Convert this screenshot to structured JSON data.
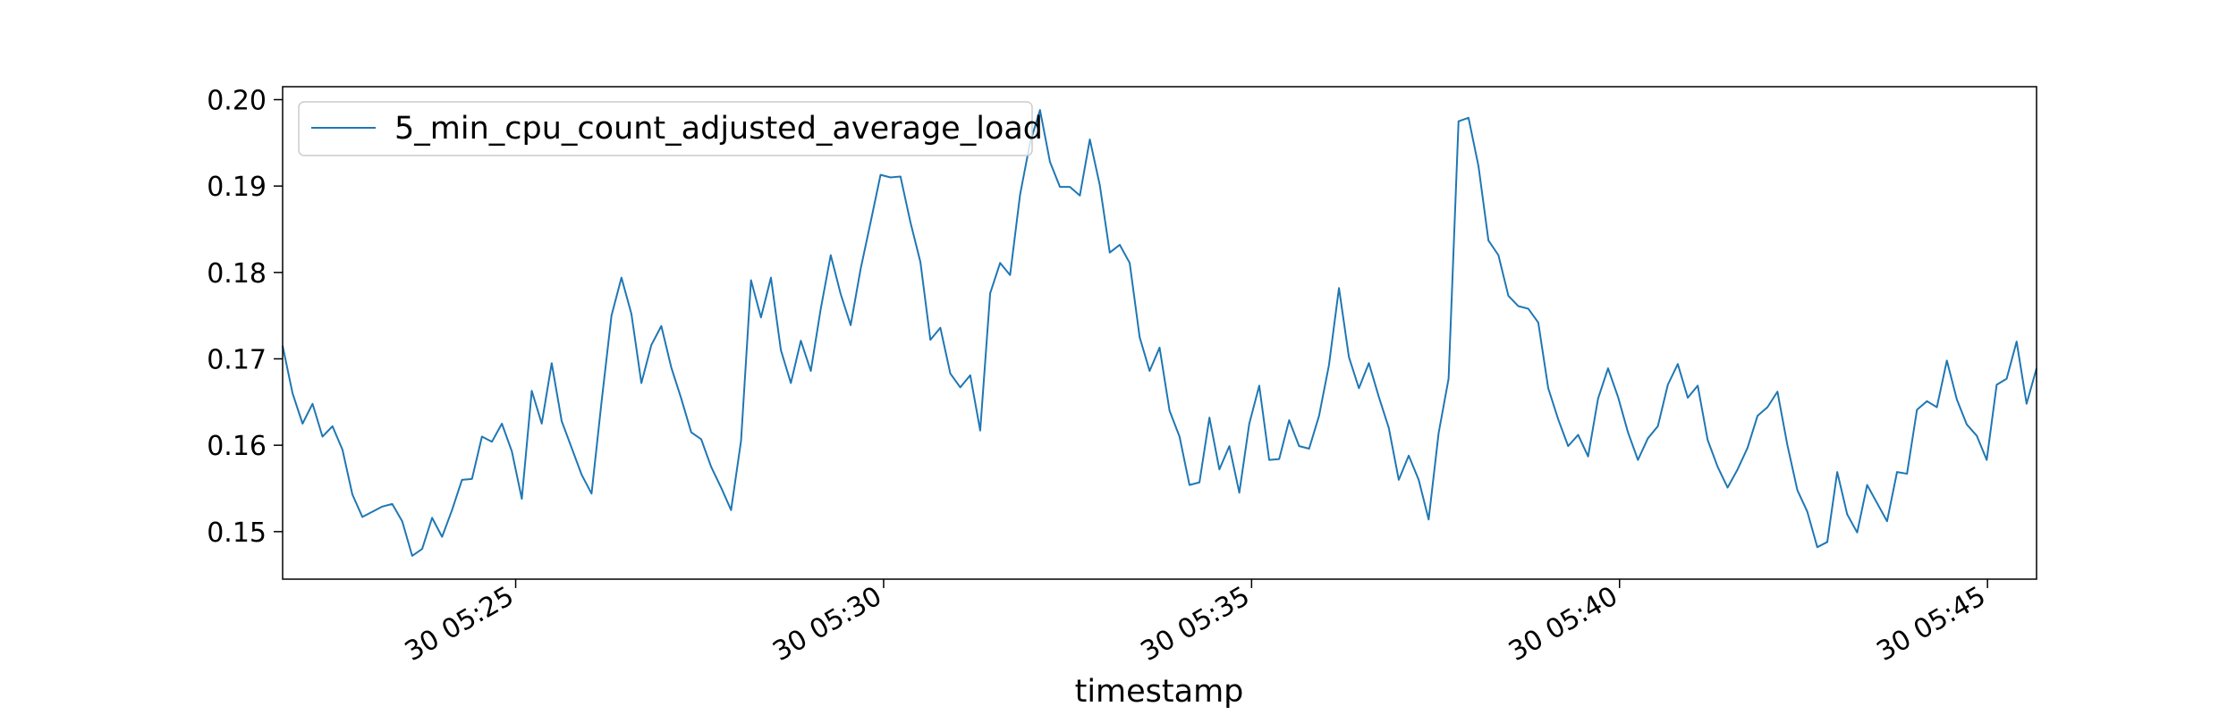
{
  "chart_data": {
    "type": "line",
    "xlabel": "timestamp",
    "ylabel": "",
    "x_start": "30 05:21:50",
    "x_end": "30 05:45:40",
    "x_ticks": [
      {
        "time": "30 05:25:00",
        "label": "30 05:25"
      },
      {
        "time": "30 05:30:00",
        "label": "30 05:30"
      },
      {
        "time": "30 05:35:00",
        "label": "30 05:35"
      },
      {
        "time": "30 05:40:00",
        "label": "30 05:40"
      },
      {
        "time": "30 05:45:00",
        "label": "30 05:45"
      }
    ],
    "ylim": [
      0.1445,
      0.2015
    ],
    "y_ticks": [
      {
        "value": 0.15,
        "label": "0.15"
      },
      {
        "value": 0.16,
        "label": "0.16"
      },
      {
        "value": 0.17,
        "label": "0.17"
      },
      {
        "value": 0.18,
        "label": "0.18"
      },
      {
        "value": 0.19,
        "label": "0.19"
      },
      {
        "value": 0.2,
        "label": "0.20"
      }
    ],
    "grid": false,
    "legend_position": "upper-left",
    "series": [
      {
        "name": "5_min_cpu_count_adjusted_average_load",
        "color": "#1f77b4",
        "values": [
          0.1715,
          0.166,
          0.1625,
          0.1648,
          0.161,
          0.1622,
          0.1595,
          0.1543,
          0.1517,
          0.1523,
          0.1529,
          0.1532,
          0.1512,
          0.1472,
          0.148,
          0.1516,
          0.1494,
          0.1525,
          0.156,
          0.1561,
          0.161,
          0.1604,
          0.1625,
          0.1593,
          0.1538,
          0.1663,
          0.1625,
          0.1695,
          0.1628,
          0.1597,
          0.1566,
          0.1544,
          0.165,
          0.175,
          0.1794,
          0.1752,
          0.1672,
          0.1716,
          0.1738,
          0.169,
          0.1654,
          0.1615,
          0.1607,
          0.1575,
          0.1551,
          0.1525,
          0.1605,
          0.1791,
          0.1748,
          0.1794,
          0.171,
          0.1672,
          0.1721,
          0.1686,
          0.1758,
          0.182,
          0.1775,
          0.1739,
          0.1804,
          0.1858,
          0.1913,
          0.191,
          0.1911,
          0.1858,
          0.1812,
          0.1722,
          0.1736,
          0.1683,
          0.1667,
          0.1681,
          0.1617,
          0.1776,
          0.1811,
          0.1797,
          0.189,
          0.195,
          0.1988,
          0.1928,
          0.1899,
          0.1899,
          0.1889,
          0.1954,
          0.1901,
          0.1823,
          0.1832,
          0.1811,
          0.1725,
          0.1686,
          0.1713,
          0.164,
          0.161,
          0.1554,
          0.1557,
          0.1632,
          0.1572,
          0.1599,
          0.1545,
          0.1625,
          0.1669,
          0.1583,
          0.1584,
          0.1629,
          0.1599,
          0.1596,
          0.1634,
          0.1693,
          0.1782,
          0.1702,
          0.1666,
          0.1695,
          0.1656,
          0.162,
          0.156,
          0.1588,
          0.156,
          0.1514,
          0.1614,
          0.1677,
          0.1975,
          0.1979,
          0.1923,
          0.1837,
          0.182,
          0.1773,
          0.1761,
          0.1758,
          0.1742,
          0.1666,
          0.163,
          0.1599,
          0.1612,
          0.1587,
          0.1654,
          0.1689,
          0.1656,
          0.1615,
          0.1583,
          0.1608,
          0.1622,
          0.167,
          0.1694,
          0.1655,
          0.1669,
          0.1606,
          0.1575,
          0.1551,
          0.1572,
          0.1597,
          0.1634,
          0.1644,
          0.1662,
          0.16,
          0.1548,
          0.1523,
          0.1482,
          0.1488,
          0.1569,
          0.152,
          0.1499,
          0.1554,
          0.1533,
          0.1512,
          0.1569,
          0.1567,
          0.1641,
          0.1651,
          0.1644,
          0.1698,
          0.1653,
          0.1624,
          0.1611,
          0.1583,
          0.167,
          0.1677,
          0.172,
          0.1648,
          0.1689
        ]
      }
    ]
  }
}
